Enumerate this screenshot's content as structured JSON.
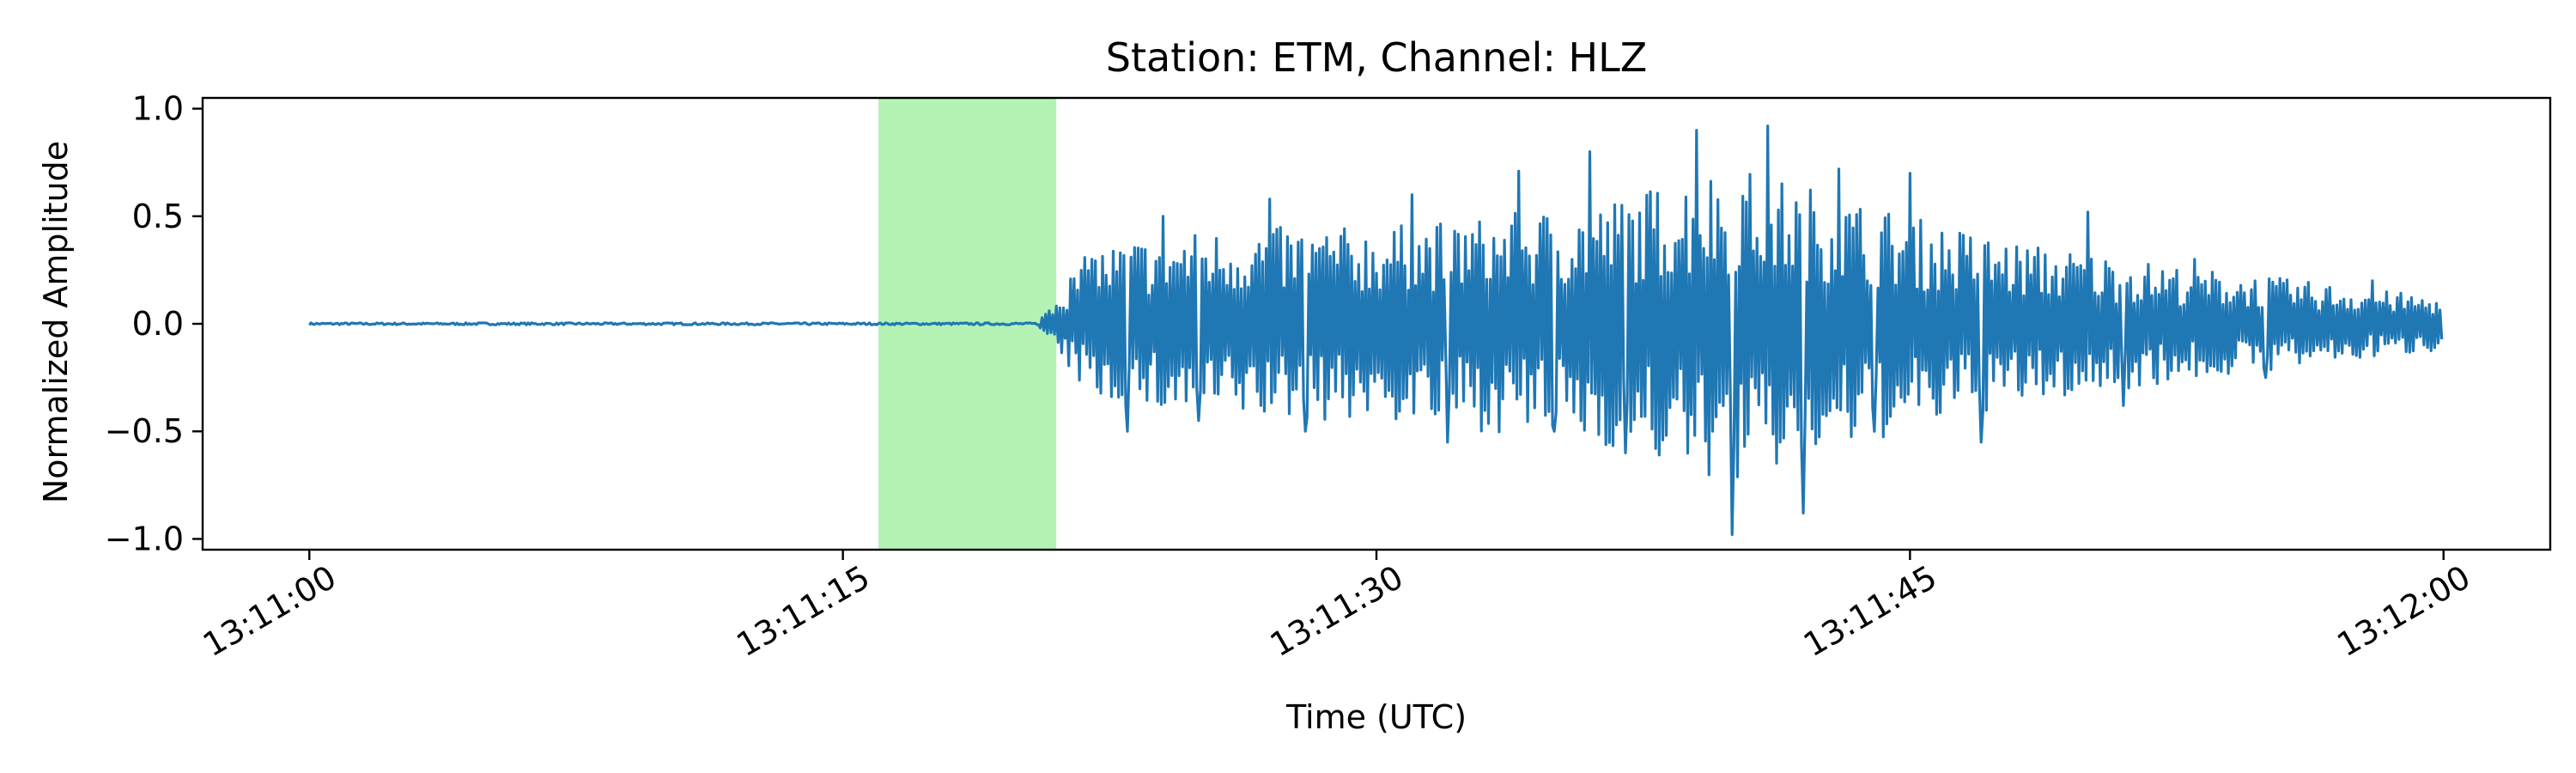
{
  "chart_data": {
    "type": "line",
    "title": "Station: ETM, Channel: HLZ",
    "xlabel": "Time (UTC)",
    "ylabel": "Normalized Amplitude",
    "x_start": "13:11:00",
    "x_end": "13:12:00",
    "xlim": [
      "13:10:57",
      "13:12:03"
    ],
    "ylim": [
      -1.05,
      1.05
    ],
    "x_ticks": [
      "13:11:00",
      "13:11:15",
      "13:11:30",
      "13:11:45",
      "13:12:00"
    ],
    "y_ticks": [
      1.0,
      0.5,
      0.0,
      -0.5,
      -1.0
    ],
    "y_tick_labels": [
      "1.0",
      "0.5",
      "0.0",
      "−0.5",
      "−1.0"
    ],
    "grid": false,
    "highlight": {
      "start": "13:11:16",
      "end": "13:11:21",
      "color": "#b3f2b3"
    },
    "series": [
      {
        "color": "#1f77b4",
        "points": [
          [
            "13:11:00",
            0.0
          ],
          [
            "13:11:20.5",
            0.0
          ],
          [
            "13:11:21",
            -0.05
          ],
          [
            "13:11:22",
            0.3
          ],
          [
            "13:11:23",
            -0.5
          ],
          [
            "13:11:24",
            0.5
          ],
          [
            "13:11:25",
            -0.45
          ],
          [
            "13:11:27",
            0.58
          ],
          [
            "13:11:28",
            -0.5
          ],
          [
            "13:11:31",
            0.6
          ],
          [
            "13:11:32",
            -0.55
          ],
          [
            "13:11:34",
            0.71
          ],
          [
            "13:11:35",
            -0.5
          ],
          [
            "13:11:36",
            0.8
          ],
          [
            "13:11:37",
            -0.6
          ],
          [
            "13:11:39",
            0.9
          ],
          [
            "13:11:40",
            -0.98
          ],
          [
            "13:11:41",
            0.92
          ],
          [
            "13:11:42",
            -0.88
          ],
          [
            "13:11:43",
            0.72
          ],
          [
            "13:11:44",
            -0.5
          ],
          [
            "13:11:45",
            0.7
          ],
          [
            "13:11:47",
            -0.55
          ],
          [
            "13:11:50",
            0.52
          ],
          [
            "13:11:51",
            -0.38
          ],
          [
            "13:11:53",
            0.3
          ],
          [
            "13:11:55",
            -0.25
          ],
          [
            "13:11:58",
            0.2
          ],
          [
            "13:12:00",
            -0.05
          ]
        ],
        "envelope": [
          [
            "13:11:00",
            0.01
          ],
          [
            "13:11:20.5",
            0.01
          ],
          [
            "13:11:21",
            0.15
          ],
          [
            "13:11:22",
            0.35
          ],
          [
            "13:11:24",
            0.42
          ],
          [
            "13:11:27",
            0.45
          ],
          [
            "13:11:30",
            0.45
          ],
          [
            "13:11:33",
            0.5
          ],
          [
            "13:11:36",
            0.55
          ],
          [
            "13:11:38",
            0.65
          ],
          [
            "13:11:40",
            0.75
          ],
          [
            "13:11:42",
            0.65
          ],
          [
            "13:11:45",
            0.5
          ],
          [
            "13:11:48",
            0.38
          ],
          [
            "13:11:52",
            0.28
          ],
          [
            "13:11:56",
            0.2
          ],
          [
            "13:12:00",
            0.12
          ]
        ]
      }
    ]
  }
}
